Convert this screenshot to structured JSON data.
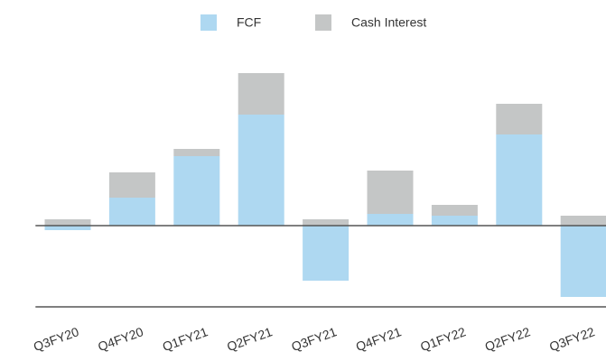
{
  "chart_data": {
    "type": "stacked_bar",
    "categories": [
      "Q3FY20",
      "Q4FY20",
      "Q1FY21",
      "Q2FY21",
      "Q3FY21",
      "Q4FY21",
      "Q1FY22",
      "Q2FY22",
      "Q3FY22"
    ],
    "series": [
      {
        "name": "FCF",
        "color": "#aed8f1",
        "values": [
          -0.5,
          3.1,
          7.7,
          12.3,
          -6.1,
          1.3,
          1.1,
          10.1,
          -7.9
        ]
      },
      {
        "name": "Cash Interest",
        "color": "#c4c6c6",
        "values": [
          0.7,
          2.8,
          0.8,
          4.6,
          0.7,
          4.8,
          1.2,
          3.4,
          1.1
        ]
      }
    ],
    "ylim": [
      -9,
      19
    ],
    "legend": "top"
  }
}
